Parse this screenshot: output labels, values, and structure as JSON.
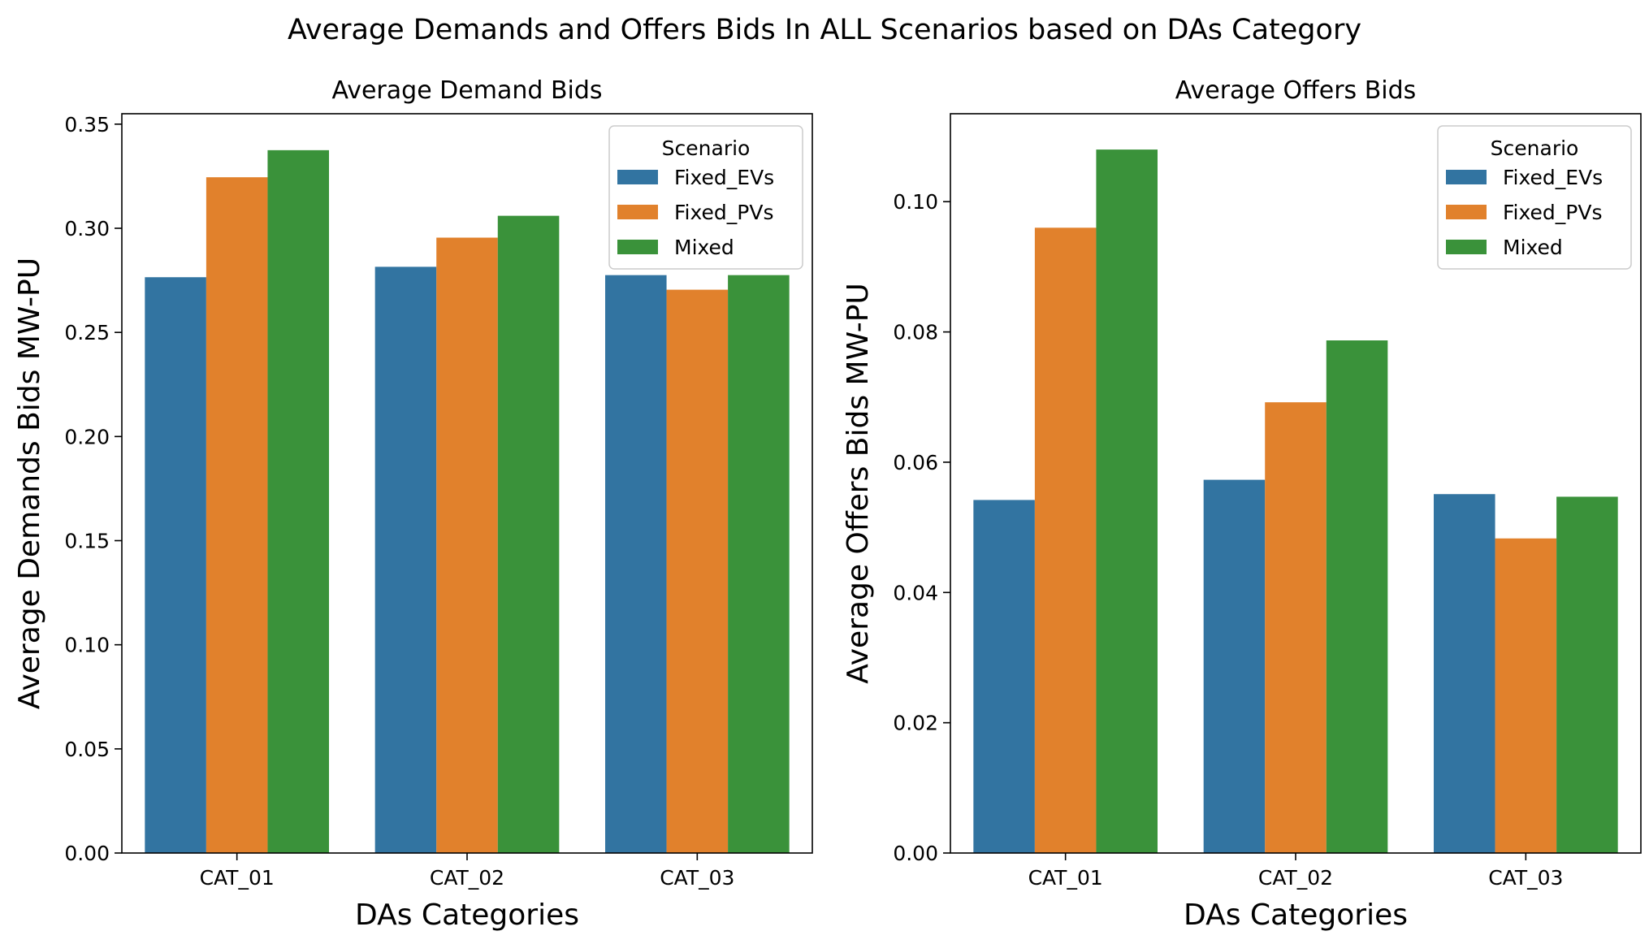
{
  "suptitle": "Average Demands and Offers Bids In ALL Scenarios based on DAs Category",
  "colors": {
    "Fixed_EVs": "#3274a1",
    "Fixed_PVs": "#e1812c",
    "Mixed": "#3a923a"
  },
  "chart_data": [
    {
      "type": "bar",
      "title": "Average Demand Bids",
      "xlabel": "DAs Categories",
      "ylabel": "Average Demands Bids MW-PU",
      "categories": [
        "CAT_01",
        "CAT_02",
        "CAT_03"
      ],
      "ylim": [
        0,
        0.355
      ],
      "yticks": [
        0.0,
        0.05,
        0.1,
        0.15,
        0.2,
        0.25,
        0.3,
        0.35
      ],
      "ytick_labels": [
        "0.00",
        "0.05",
        "0.10",
        "0.15",
        "0.20",
        "0.25",
        "0.30",
        "0.35"
      ],
      "grid": false,
      "legend": {
        "title": "Scenario",
        "placement": "top-right"
      },
      "series": [
        {
          "name": "Fixed_EVs",
          "values": [
            0.2765,
            0.2815,
            0.2775
          ]
        },
        {
          "name": "Fixed_PVs",
          "values": [
            0.3245,
            0.2955,
            0.2705
          ]
        },
        {
          "name": "Mixed",
          "values": [
            0.3375,
            0.306,
            0.2775
          ]
        }
      ]
    },
    {
      "type": "bar",
      "title": "Average Offers Bids",
      "xlabel": "DAs Categories",
      "ylabel": "Average Offers Bids MW-PU",
      "categories": [
        "CAT_01",
        "CAT_02",
        "CAT_03"
      ],
      "ylim": [
        0,
        0.1135
      ],
      "yticks": [
        0.0,
        0.02,
        0.04,
        0.06,
        0.08,
        0.1
      ],
      "ytick_labels": [
        "0.00",
        "0.02",
        "0.04",
        "0.06",
        "0.08",
        "0.10"
      ],
      "grid": false,
      "legend": {
        "title": "Scenario",
        "placement": "top-right"
      },
      "series": [
        {
          "name": "Fixed_EVs",
          "values": [
            0.0542,
            0.0573,
            0.0551
          ]
        },
        {
          "name": "Fixed_PVs",
          "values": [
            0.096,
            0.0692,
            0.0483
          ]
        },
        {
          "name": "Mixed",
          "values": [
            0.108,
            0.0787,
            0.0547
          ]
        }
      ]
    }
  ]
}
